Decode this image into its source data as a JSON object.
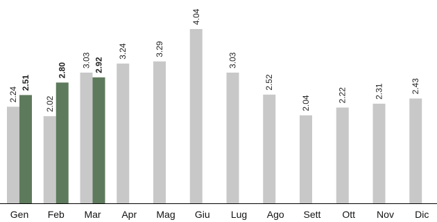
{
  "chart_data": {
    "type": "bar",
    "categories": [
      "Gen",
      "Feb",
      "Mar",
      "Apr",
      "Mag",
      "Giu",
      "Lug",
      "Ago",
      "Sett",
      "Ott",
      "Nov",
      "Dic"
    ],
    "series": [
      {
        "values": [
          2.24,
          2.02,
          3.03,
          3.24,
          3.29,
          4.04,
          3.03,
          2.52,
          2.04,
          2.22,
          2.31,
          2.43
        ],
        "labels": [
          "2.24",
          "2.02",
          "3.03",
          "3.24",
          "3.29",
          "4.04",
          "3.03",
          "2.52",
          "2.04",
          "2.22",
          "2.31",
          "2.43"
        ],
        "color": "#c8c8c8",
        "label_weight": "normal"
      },
      {
        "values": [
          2.51,
          2.8,
          2.92,
          null,
          null,
          null,
          null,
          null,
          null,
          null,
          null,
          null
        ],
        "labels": [
          "2.51",
          "2.80",
          "2.92",
          "",
          "",
          "",
          "",
          "",
          "",
          "",
          "",
          ""
        ],
        "color": "#5e7a5c",
        "label_weight": "bold"
      }
    ],
    "ylim": [
      0,
      4.04
    ],
    "grid": false,
    "axis_color": "#000000",
    "title": "",
    "xlabel": "",
    "ylabel": ""
  }
}
